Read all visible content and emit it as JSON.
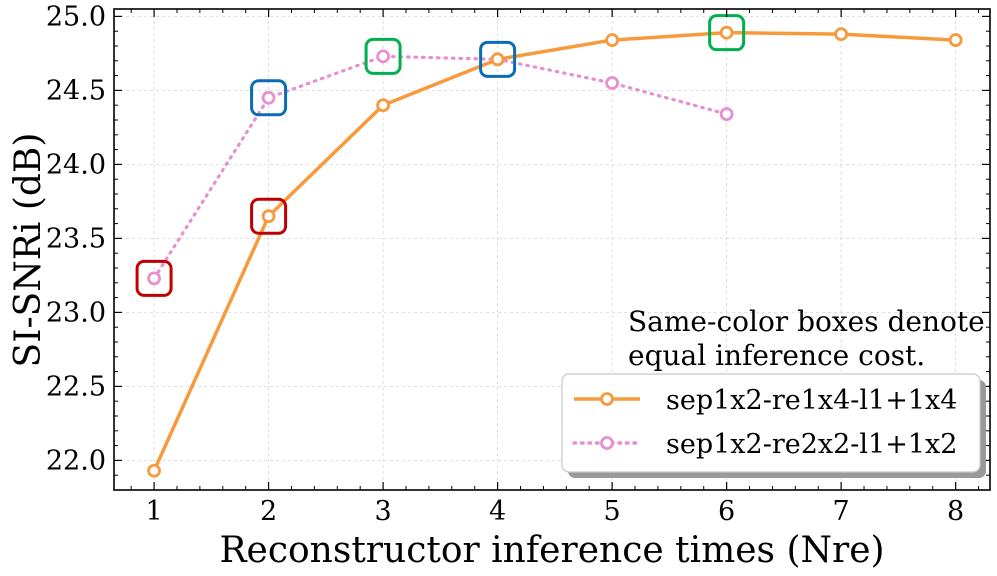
{
  "chart_data": {
    "type": "line",
    "title": "",
    "xlabel": "Reconstructor inference times (Nre)",
    "ylabel": "SI-SNRi (dB)",
    "xlim": [
      0.65,
      8.3
    ],
    "ylim": [
      21.8,
      25.05
    ],
    "xticks": [
      1,
      2,
      3,
      4,
      5,
      6,
      7,
      8
    ],
    "xtick_labels": [
      "1",
      "2",
      "3",
      "4",
      "5",
      "6",
      "7",
      "8"
    ],
    "yticks": [
      22.0,
      22.5,
      23.0,
      23.5,
      24.0,
      24.5,
      25.0
    ],
    "ytick_labels": [
      "22.0",
      "22.5",
      "23.0",
      "23.5",
      "24.0",
      "24.5",
      "25.0"
    ],
    "grid": true,
    "series": [
      {
        "name": "sep1x2-re1x4-l1+1x4",
        "color": "#f79a3e",
        "line_style": "solid",
        "marker": "hollow-circle",
        "x": [
          1,
          2,
          3,
          4,
          5,
          6,
          7,
          8
        ],
        "y": [
          21.93,
          23.65,
          24.4,
          24.71,
          24.84,
          24.89,
          24.88,
          24.84
        ]
      },
      {
        "name": "sep1x2-re2x2-l1+1x2",
        "color": "#e88fd0",
        "line_style": "dotted",
        "marker": "hollow-circle",
        "x": [
          1,
          2,
          3,
          4,
          5,
          6
        ],
        "y": [
          23.23,
          24.45,
          24.73,
          24.71,
          24.55,
          24.34
        ]
      }
    ],
    "boxes": [
      {
        "cost_group": "red",
        "color": "#c00000",
        "x": 1,
        "y": 23.23
      },
      {
        "cost_group": "red",
        "color": "#c00000",
        "x": 2,
        "y": 23.65
      },
      {
        "cost_group": "blue",
        "color": "#0a6cb4",
        "x": 2,
        "y": 24.45
      },
      {
        "cost_group": "blue",
        "color": "#0a6cb4",
        "x": 4,
        "y": 24.71
      },
      {
        "cost_group": "green",
        "color": "#00b050",
        "x": 3,
        "y": 24.73
      },
      {
        "cost_group": "green",
        "color": "#00b050",
        "x": 6,
        "y": 24.89
      }
    ],
    "annotation": {
      "line1": "Same-color boxes denote",
      "line2": "equal inference cost."
    },
    "legend": {
      "placement": "bottom-right",
      "entries": [
        "sep1x2-re1x4-l1+1x4",
        "sep1x2-re2x2-l1+1x2"
      ]
    }
  }
}
